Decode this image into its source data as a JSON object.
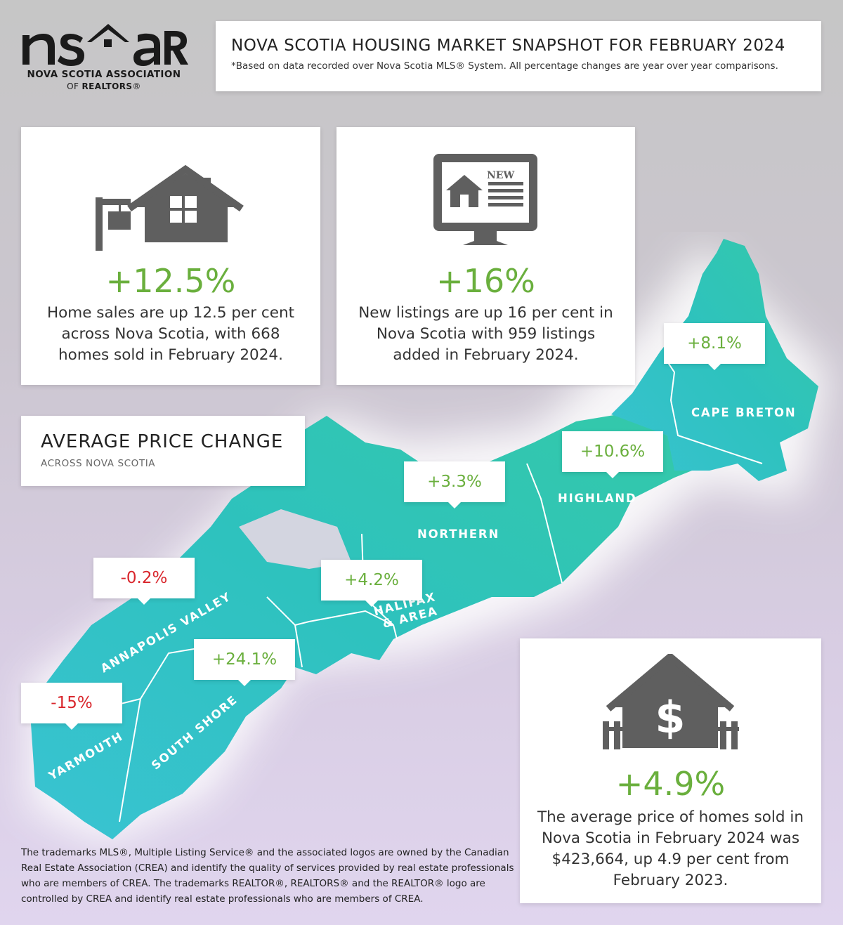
{
  "logo": {
    "wordmark": "nsar",
    "org_name": "NOVA SCOTIA ASSOCIATION",
    "org_sub_prefix": "OF ",
    "org_sub_bold": "REALTORS",
    "org_sub_mark": "®"
  },
  "header": {
    "title": "NOVA SCOTIA HOUSING MARKET SNAPSHOT FOR FEBRUARY 2024",
    "note": "*Based on data recorded over Nova Scotia MLS® System. All percentage changes are year over year comparisons."
  },
  "stats": {
    "sales": {
      "icon": "house-for-sale-icon",
      "pct": "+12.5%",
      "desc": "Home sales are up 12.5 per cent across Nova Scotia, with 668 homes sold in February 2024."
    },
    "listings": {
      "icon": "new-listing-monitor-icon",
      "badge": "NEW",
      "pct": "+16%",
      "desc": "New listings are up 16 per cent in Nova Scotia with 959 listings added in February 2024."
    }
  },
  "avg_price_change": {
    "title": "AVERAGE PRICE CHANGE",
    "subtitle": "ACROSS NOVA SCOTIA"
  },
  "regions": {
    "cape_breton": {
      "label": "CAPE BRETON",
      "change": "+8.1%"
    },
    "highland": {
      "label": "HIGHLAND",
      "change": "+10.6%"
    },
    "northern": {
      "label": "NORTHERN",
      "change": "+3.3%"
    },
    "halifax": {
      "label_line1": "HALIFAX",
      "label_line2": "& AREA",
      "change": "+4.2%"
    },
    "annapolis": {
      "label": "ANNAPOLIS VALLEY",
      "change": "-0.2%"
    },
    "south_shore": {
      "label": "SOUTH SHORE",
      "change": "+24.1%"
    },
    "yarmouth": {
      "label": "YARMOUTH",
      "change": "-15%"
    }
  },
  "colors": {
    "map_teal": "#2ec4b6",
    "positive": "#6aaf3d",
    "negative": "#d9262c",
    "icon_gray": "#5f5f5f"
  },
  "avg_price": {
    "icon": "house-dollar-icon",
    "pct": "+4.9%",
    "desc": "The average price of homes sold in Nova Scotia in February 2024 was $423,664, up 4.9 per cent from February 2023."
  },
  "footer": "The trademarks MLS®, Multiple Listing Service® and the associated logos are owned by the Canadian Real Estate Association (CREA) and identify the quality of services provided by real estate professionals who are members of CREA. The trademarks REALTOR®, REALTORS® and the REALTOR® logo are controlled by CREA and identify real estate professionals who are members of CREA."
}
